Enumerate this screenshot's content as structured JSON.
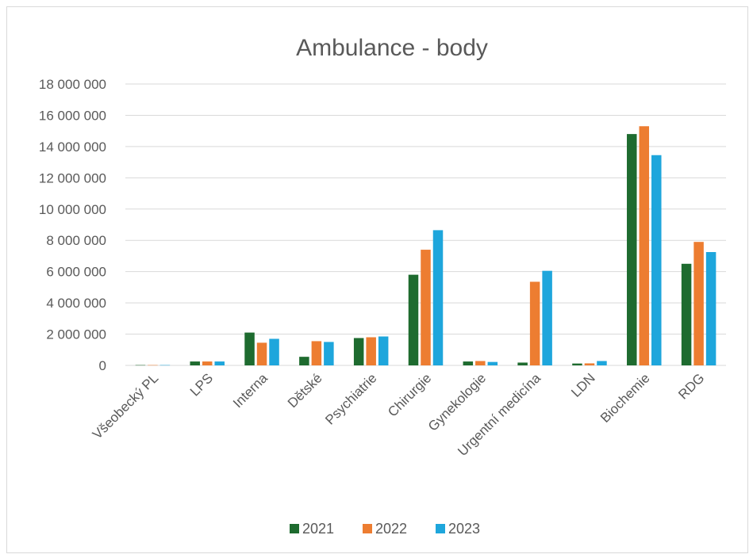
{
  "chart_data": {
    "type": "bar",
    "title": "Ambulance - body",
    "categories": [
      "Všeobecký PL",
      "LPS",
      "Interna",
      "Dětské",
      "Psychiatrie",
      "Chirurgie",
      "Gynekologie",
      "Urgentní medicína",
      "LDN",
      "Biochemie",
      "RDG"
    ],
    "series": [
      {
        "name": "2021",
        "color": "#1e6b2f",
        "values": [
          20000,
          250000,
          2100000,
          550000,
          1750000,
          5800000,
          250000,
          180000,
          120000,
          14800000,
          6500000
        ]
      },
      {
        "name": "2022",
        "color": "#ed7d31",
        "values": [
          20000,
          250000,
          1450000,
          1550000,
          1800000,
          7400000,
          280000,
          5350000,
          130000,
          15300000,
          7900000
        ]
      },
      {
        "name": "2023",
        "color": "#1ea6dc",
        "values": [
          20000,
          250000,
          1700000,
          1500000,
          1850000,
          8650000,
          220000,
          6050000,
          280000,
          13450000,
          7250000
        ]
      }
    ],
    "yticks": [
      "0",
      "2 000 000",
      "4 000 000",
      "6 000 000",
      "8 000 000",
      "10 000 000",
      "12 000 000",
      "14 000 000",
      "16 000 000",
      "18 000 000"
    ],
    "ylim": [
      0,
      18000000
    ],
    "grid": true,
    "legend": "bottom"
  }
}
